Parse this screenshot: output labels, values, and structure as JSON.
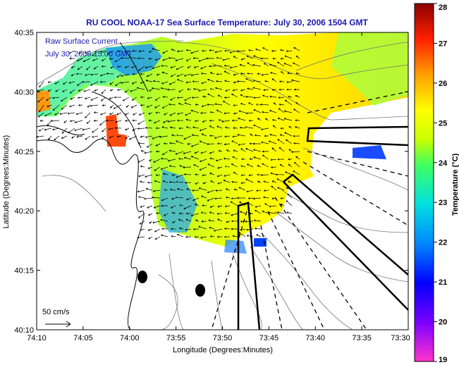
{
  "title": "RU COOL  NOAA-17  Sea Surface Temperature:  July 30, 2006 1504 GMT",
  "map": {
    "xlabel": "Longitude (Degrees:Minutes)",
    "ylabel": "Latitude (Degrees:Minutes)",
    "lon_ticks": [
      "74:10",
      "74:05",
      "74:00",
      "73:55",
      "73:50",
      "73:45",
      "73:40",
      "73:35",
      "73:30"
    ],
    "lat_ticks": [
      "40:35",
      "40:30",
      "40:25",
      "40:20",
      "40:15",
      "40:10"
    ],
    "current_label_line1": "Raw Surface Current",
    "current_label_line2": "July 30, 2006 15:00 GMT",
    "scale_label": "50 cm/s"
  },
  "colorbar": {
    "label": "Temperature (°C)",
    "ticks": [
      "28",
      "27",
      "26",
      "25",
      "24",
      "23",
      "22",
      "21",
      "20",
      "19"
    ],
    "min": 19,
    "max": 28
  }
}
